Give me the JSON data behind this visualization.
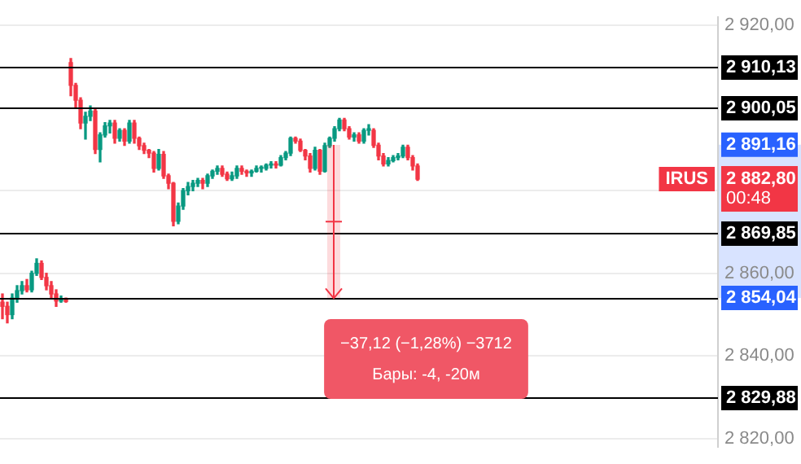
{
  "chart_data": {
    "type": "candlestick",
    "categories": [
      null,
      null,
      null,
      null,
      null,
      null,
      null,
      null,
      null,
      null,
      null,
      null,
      null,
      null,
      null,
      null,
      null,
      null,
      null,
      null,
      null,
      null,
      null,
      null,
      null,
      null,
      null,
      null,
      null,
      null,
      null,
      null,
      null,
      null,
      null,
      null,
      null,
      null,
      null,
      null,
      null,
      null,
      null,
      null,
      null,
      null,
      null,
      null,
      null,
      null,
      null,
      null,
      null,
      null,
      null,
      null,
      null,
      null,
      null,
      null,
      null,
      null,
      null,
      null,
      null,
      null,
      null,
      null,
      null,
      null,
      null,
      null,
      null,
      null,
      null,
      null,
      null,
      null,
      null,
      null,
      null,
      null,
      null,
      null,
      null,
      null,
      null,
      null,
      null,
      null,
      null,
      null,
      null,
      null,
      null,
      null,
      null,
      null,
      null,
      null,
      null,
      null,
      null,
      null,
      null,
      null,
      null,
      null,
      null,
      null,
      null,
      null,
      null,
      null,
      null,
      null,
      null,
      null,
      null,
      null,
      null,
      null,
      null,
      null,
      null,
      null,
      null,
      null,
      null,
      null,
      null,
      null,
      null,
      null,
      null,
      null,
      null,
      null,
      null,
      null,
      null,
      null,
      null,
      null,
      null,
      null,
      null
    ],
    "ohlc": [
      [
        2853,
        2855,
        2849,
        2852
      ],
      [
        2852,
        2853,
        2848,
        2850
      ],
      [
        2850,
        2855,
        2849,
        2854
      ],
      [
        2854,
        2857,
        2853,
        2855.8
      ],
      [
        2855.8,
        2858,
        2855,
        2857
      ],
      [
        2857,
        2858.5,
        2855.5,
        2856
      ],
      [
        2856,
        2860.5,
        2855.5,
        2860
      ],
      [
        2860,
        2863.5,
        2859.5,
        2862.4
      ],
      [
        2862.4,
        2863,
        2858.5,
        2859
      ],
      [
        2859,
        2860,
        2856,
        2857
      ],
      [
        2857,
        2858,
        2854,
        2855
      ],
      [
        2855,
        2856,
        2852,
        2853.3
      ],
      [
        2853.3,
        2854.5,
        2853,
        2853.6
      ],
      [
        2853.6,
        2854,
        2853,
        2853.2
      ],
      [
        2911,
        2912,
        2903,
        2905.5
      ],
      [
        2905.5,
        2906,
        2900,
        2901.9
      ],
      [
        2901.9,
        2902.5,
        2895,
        2896.4
      ],
      [
        2896.4,
        2899,
        2892.5,
        2898
      ],
      [
        2898,
        2900.5,
        2897,
        2899.3
      ],
      [
        2899.3,
        2900,
        2889,
        2890
      ],
      [
        2890,
        2894,
        2887,
        2893.5
      ],
      [
        2893.5,
        2896.5,
        2893,
        2895.7
      ],
      [
        2895.7,
        2897,
        2894,
        2896.4
      ],
      [
        2896.4,
        2897,
        2891.5,
        2892.7
      ],
      [
        2892.7,
        2895,
        2892,
        2894.6
      ],
      [
        2894.6,
        2895,
        2891,
        2892
      ],
      [
        2892,
        2897,
        2891.5,
        2896.4
      ],
      [
        2896.4,
        2897,
        2891.5,
        2892.7
      ],
      [
        2892.7,
        2893,
        2890,
        2890.9
      ],
      [
        2890.9,
        2891.5,
        2889,
        2889.8
      ],
      [
        2889.8,
        2890,
        2888,
        2889.1
      ],
      [
        2889.1,
        2889.5,
        2884.5,
        2885.4
      ],
      [
        2885.4,
        2890,
        2885,
        2888.8
      ],
      [
        2888.8,
        2889.5,
        2883,
        2883.6
      ],
      [
        2883.6,
        2884,
        2880.5,
        2881.8
      ],
      [
        2881.8,
        2882,
        2871.5,
        2872.6
      ],
      [
        2872.6,
        2877,
        2872,
        2876.3
      ],
      [
        2876.3,
        2880.5,
        2875.5,
        2880
      ],
      [
        2880,
        2882,
        2879,
        2881
      ],
      [
        2881,
        2882.5,
        2880,
        2881.8
      ],
      [
        2881.8,
        2883,
        2881,
        2882.5
      ],
      [
        2882.5,
        2883,
        2880.5,
        2881.8
      ],
      [
        2881.8,
        2884,
        2881,
        2883.6
      ],
      [
        2883.6,
        2885,
        2883,
        2884.7
      ],
      [
        2884.7,
        2886,
        2884,
        2885.4
      ],
      [
        2885.4,
        2886,
        2883.5,
        2884
      ],
      [
        2884,
        2884.5,
        2882.5,
        2882.9
      ],
      [
        2882.9,
        2884.5,
        2882.5,
        2883.6
      ],
      [
        2883.6,
        2886,
        2883,
        2885.4
      ],
      [
        2885.4,
        2886,
        2884,
        2884.7
      ],
      [
        2884.7,
        2885,
        2883.5,
        2884.3
      ],
      [
        2884.3,
        2885,
        2883.5,
        2884.7
      ],
      [
        2884.7,
        2886,
        2884.5,
        2885.4
      ],
      [
        2885.4,
        2886,
        2884.5,
        2885.7
      ],
      [
        2885.4,
        2886.5,
        2885,
        2886.2
      ],
      [
        2886.2,
        2887,
        2885.5,
        2886.5
      ],
      [
        2886.5,
        2887,
        2885.5,
        2886.2
      ],
      [
        2886.2,
        2888.5,
        2886,
        2888
      ],
      [
        2888,
        2889.5,
        2887.5,
        2889.1
      ],
      [
        2889.1,
        2893,
        2888.5,
        2892.7
      ],
      [
        2892.7,
        2893,
        2891.5,
        2892
      ],
      [
        2892,
        2892.5,
        2889.5,
        2889.8
      ],
      [
        2889.8,
        2890,
        2887.5,
        2888.4
      ],
      [
        2888.4,
        2889,
        2884.5,
        2885.4
      ],
      [
        2885.4,
        2890.5,
        2885,
        2889.8
      ],
      [
        2889.8,
        2890,
        2884,
        2884.7
      ],
      [
        2884.7,
        2891.5,
        2884.5,
        2890.9
      ],
      [
        2890.9,
        2893,
        2890.5,
        2892.7
      ],
      [
        2892.7,
        2895.5,
        2892,
        2895
      ],
      [
        2895,
        2897.5,
        2894.5,
        2897.1
      ],
      [
        2897.1,
        2897.5,
        2894.5,
        2895
      ],
      [
        2895,
        2895.5,
        2892.5,
        2893
      ],
      [
        2893,
        2894,
        2892,
        2893.5
      ],
      [
        2893.5,
        2894,
        2891.5,
        2892
      ],
      [
        2892,
        2895,
        2891.5,
        2894.6
      ],
      [
        2894.6,
        2896,
        2893.5,
        2895
      ],
      [
        2894.6,
        2895,
        2890.5,
        2891
      ],
      [
        2891,
        2891.5,
        2887.5,
        2888.4
      ],
      [
        2888.4,
        2889,
        2886,
        2886.5
      ],
      [
        2886.5,
        2888,
        2886,
        2887.3
      ],
      [
        2887.3,
        2888.5,
        2887,
        2888
      ],
      [
        2888,
        2889,
        2887.5,
        2888.4
      ],
      [
        2888.4,
        2891,
        2888,
        2890.5
      ],
      [
        2890.5,
        2891,
        2887.5,
        2888
      ],
      [
        2888,
        2888.5,
        2885,
        2886
      ],
      [
        2886,
        2886.5,
        2882.5,
        2882.8
      ],
      null,
      null,
      null,
      null,
      null,
      null,
      null,
      null,
      null,
      null,
      null,
      null,
      null,
      null,
      null,
      null,
      null,
      null,
      null,
      null,
      null,
      null,
      null,
      null,
      null,
      null,
      null,
      null,
      null,
      null,
      null,
      null,
      null,
      null,
      null,
      null,
      null,
      null,
      null,
      null,
      null,
      null,
      null,
      null,
      null,
      null,
      null,
      null,
      null,
      null,
      null,
      null,
      null,
      null,
      null,
      null,
      null,
      null,
      null,
      null,
      null
    ],
    "ylim": [
      2818,
      2922
    ],
    "yticks": [
      {
        "value": 2820,
        "label": "2 820,00"
      },
      {
        "value": 2840,
        "label": "2 840,00"
      },
      {
        "value": 2860,
        "label": "2 860,00"
      },
      {
        "value": 2880,
        "label": null
      },
      {
        "value": 2920,
        "label": "2 920,00"
      }
    ],
    "y2lim": [
      2818,
      2922
    ],
    "y2ticks": [
      {
        "value": 2854.04,
        "label": "2 854,04"
      },
      {
        "value": 2891.16,
        "label": "2 891,16"
      }
    ],
    "grid": "y",
    "tick_labels": "y",
    "ref_lines": [
      {
        "axis": "y",
        "value": 2910.13,
        "label": "2 910,13",
        "color": "#000000"
      },
      {
        "axis": "y",
        "value": 2900.05,
        "label": "2 900,05",
        "color": "#000000"
      },
      {
        "axis": "y",
        "value": 2869.85,
        "label": "2 869,85",
        "color": "#000000"
      },
      {
        "axis": "y",
        "value": 2854.04,
        "color": "#000000"
      },
      {
        "axis": "y",
        "value": 2829.88,
        "label": "2 829,88",
        "color": "#000000"
      }
    ],
    "annotations": [
      "IRUS",
      "2 882,80",
      "00:48",
      "−37,12 (−1,28%) −3712",
      "Бары: -4, -20м"
    ]
  }
}
